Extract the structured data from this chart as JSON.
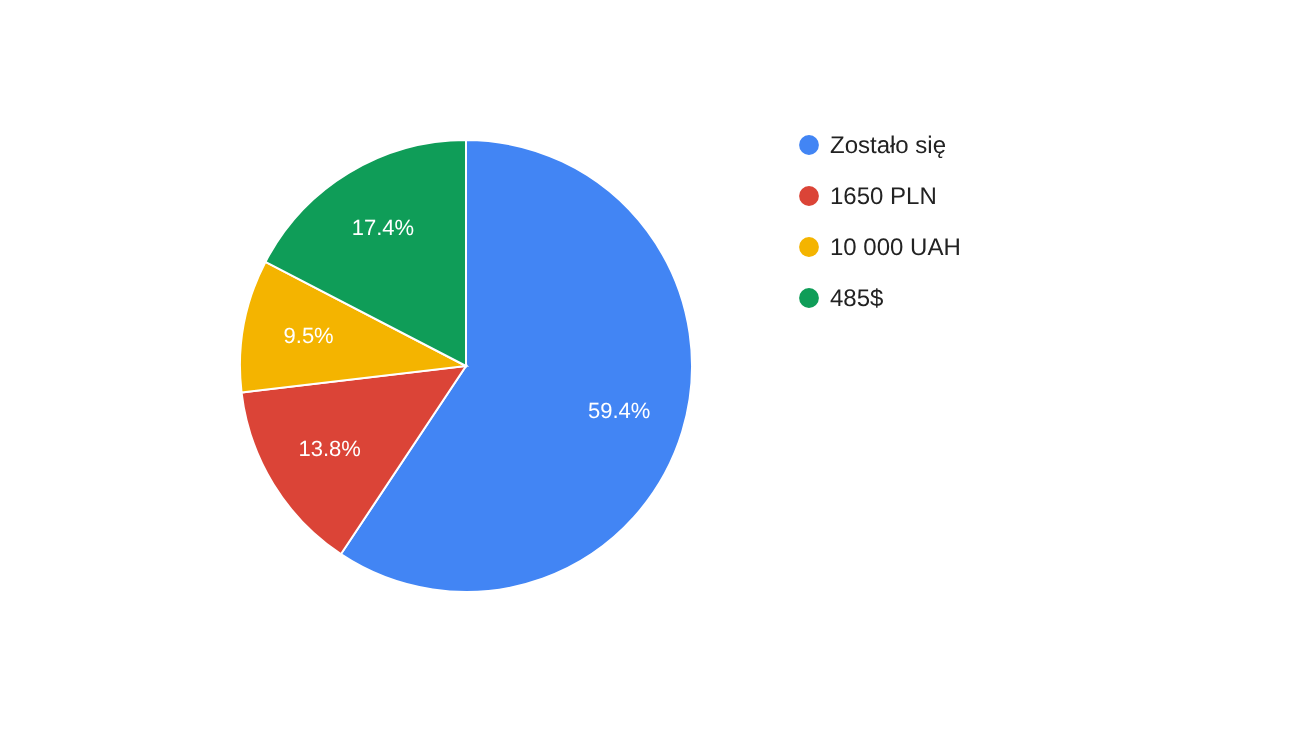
{
  "chart_data": {
    "type": "pie",
    "categories": [
      "Zostało się",
      "1650 PLN",
      "10 000 UAH",
      "485$"
    ],
    "values": [
      59.4,
      13.8,
      9.5,
      17.4
    ],
    "colors": [
      "#4285f4",
      "#db4437",
      "#f4b400",
      "#0f9d58"
    ],
    "value_labels": [
      "59.4%",
      "13.8%",
      "9.5%",
      "17.4%"
    ],
    "legend": "right"
  }
}
